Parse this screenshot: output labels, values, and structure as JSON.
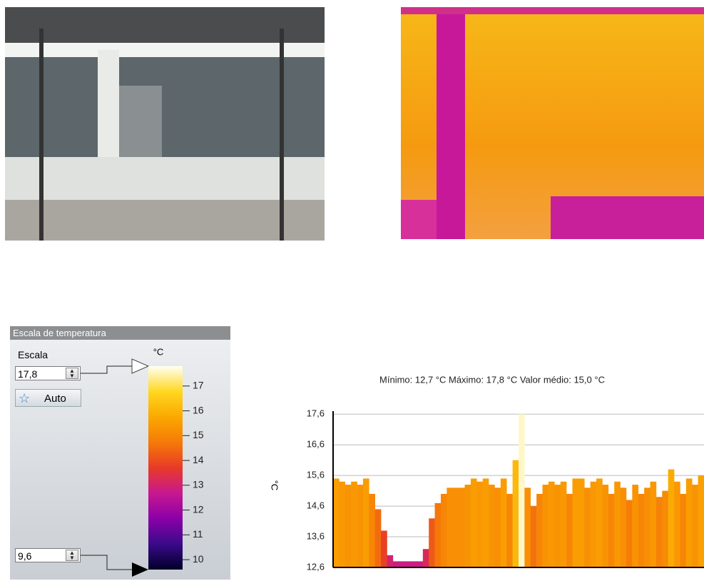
{
  "panel": {
    "title": "Escala de temperatura",
    "scale_label": "Escala",
    "unit": "°C",
    "auto_button": "Auto",
    "max": {
      "value": 17.8,
      "label": "17,8"
    },
    "min": {
      "value": 9.6,
      "label": "9,6"
    },
    "ticks": [
      10,
      11,
      12,
      13,
      14,
      15,
      16,
      17
    ],
    "colormap": [
      "#000028",
      "#3a0a8a",
      "#8a00a8",
      "#c81890",
      "#e83a28",
      "#f57a08",
      "#fba800",
      "#ffd820",
      "#fffff2"
    ]
  },
  "chart_data": {
    "type": "bar",
    "title": "Mínimo:  12,7  °C Máximo:  17,8  °C Valor médio:  15,0  °C",
    "y_label": "°C",
    "values": [
      15.5,
      15.4,
      15.3,
      15.4,
      15.3,
      15.5,
      15.0,
      14.5,
      13.8,
      13.0,
      12.8,
      12.8,
      12.8,
      12.8,
      12.8,
      13.2,
      14.2,
      14.7,
      15.0,
      15.2,
      15.2,
      15.2,
      15.3,
      15.5,
      15.4,
      15.5,
      15.3,
      15.2,
      15.5,
      15.0,
      16.1,
      17.6,
      15.2,
      14.6,
      15.0,
      15.3,
      15.4,
      15.3,
      15.4,
      15.0,
      15.5,
      15.5,
      15.2,
      15.4,
      15.5,
      15.3,
      15.0,
      15.4,
      15.2,
      14.8,
      15.3,
      15.0,
      15.2,
      15.4,
      14.9,
      15.1,
      15.8,
      15.4,
      15.0,
      15.5,
      15.3,
      15.6
    ],
    "ylim": [
      12.6,
      17.7
    ],
    "yticks": [
      {
        "value": 12.6,
        "label": "12,6"
      },
      {
        "value": 13.6,
        "label": "13,6"
      },
      {
        "value": 14.6,
        "label": "14,6"
      },
      {
        "value": 15.6,
        "label": "15,6"
      },
      {
        "value": 16.6,
        "label": "16,6"
      },
      {
        "value": 17.6,
        "label": "17,6"
      }
    ],
    "grid": true
  }
}
